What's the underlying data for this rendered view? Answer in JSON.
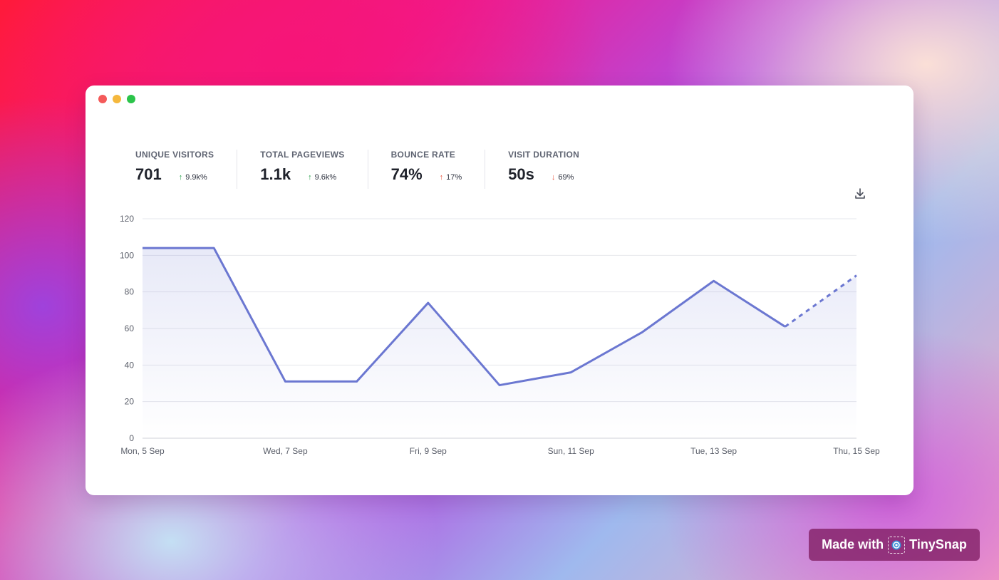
{
  "stats": [
    {
      "label": "UNIQUE VISITORS",
      "value": "701",
      "change": "9.9k%",
      "direction": "up",
      "color": "#2ea44f"
    },
    {
      "label": "TOTAL PAGEVIEWS",
      "value": "1.1k",
      "change": "9.6k%",
      "direction": "up",
      "color": "#2ea44f"
    },
    {
      "label": "BOUNCE RATE",
      "value": "74%",
      "change": "17%",
      "direction": "up",
      "color": "#e8553f"
    },
    {
      "label": "VISIT DURATION",
      "value": "50s",
      "change": "69%",
      "direction": "down",
      "color": "#e8553f"
    }
  ],
  "icons": {
    "download": "download-icon",
    "badge_logo": "tinysnap-logo-icon"
  },
  "colors": {
    "line": "#6b77d1",
    "grid": "#e6e7ec",
    "axis_text": "#5b5f6a"
  },
  "chart_data": {
    "type": "line",
    "x": [
      "Mon, 5 Sep",
      "Tue, 6 Sep",
      "Wed, 7 Sep",
      "Thu, 8 Sep",
      "Fri, 9 Sep",
      "Sat, 10 Sep",
      "Sun, 11 Sep",
      "Mon, 12 Sep",
      "Tue, 13 Sep",
      "Wed, 14 Sep",
      "Thu, 15 Sep"
    ],
    "tick_labels": [
      "Mon, 5 Sep",
      "Wed, 7 Sep",
      "Fri, 9 Sep",
      "Sun, 11 Sep",
      "Tue, 13 Sep",
      "Thu, 15 Sep"
    ],
    "series": [
      {
        "values": [
          104,
          104,
          31,
          31,
          74,
          29,
          36,
          58,
          86,
          61,
          89
        ],
        "incomplete_last_point": true
      }
    ],
    "yticks": [
      0,
      20,
      40,
      60,
      80,
      100,
      120
    ],
    "ylim": [
      0,
      120
    ],
    "grid": true,
    "area_fill": true
  },
  "badge": {
    "prefix": "Made with",
    "brand": "TinySnap"
  }
}
